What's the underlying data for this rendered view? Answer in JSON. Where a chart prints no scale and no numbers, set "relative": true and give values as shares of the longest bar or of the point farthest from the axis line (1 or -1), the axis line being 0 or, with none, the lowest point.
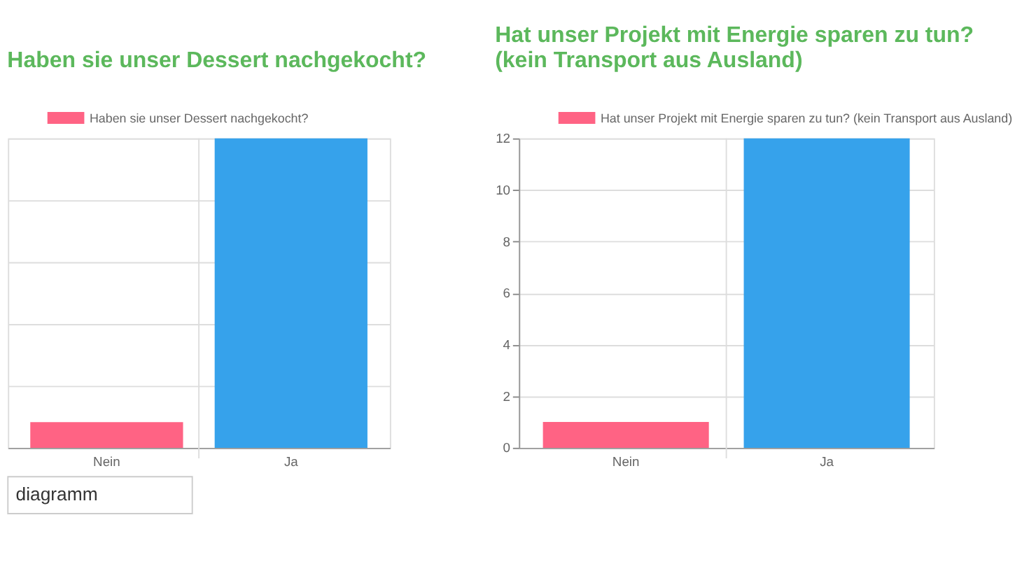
{
  "chart_data": [
    {
      "type": "bar",
      "title": "Haben sie unser Dessert nachgekocht?",
      "categories": [
        "Nein",
        "Ja"
      ],
      "relative": true,
      "series": [
        {
          "name": "Haben sie unser Dessert nachgekocht?",
          "color": "#ff6384",
          "colors": [
            "#ff6384",
            "#36a2eb"
          ],
          "values": [
            0.083,
            1
          ]
        }
      ],
      "grid": true,
      "legend": "top",
      "annotations": [
        "diagramm"
      ]
    },
    {
      "type": "bar",
      "title": "Hat unser Projekt mit Energie sparen zu tun? (kein Transport aus Ausland)",
      "categories": [
        "Nein",
        "Ja"
      ],
      "series": [
        {
          "name": "Hat unser Projekt mit Energie sparen zu tun? (kein Transport aus Ausland)",
          "color": "#ff6384",
          "colors": [
            "#ff6384",
            "#36a2eb"
          ],
          "values": [
            1,
            12
          ]
        }
      ],
      "ylim": [
        0,
        12
      ],
      "yticks": [
        0,
        2,
        4,
        6,
        8,
        10,
        12
      ],
      "grid": true,
      "legend": "top"
    }
  ]
}
